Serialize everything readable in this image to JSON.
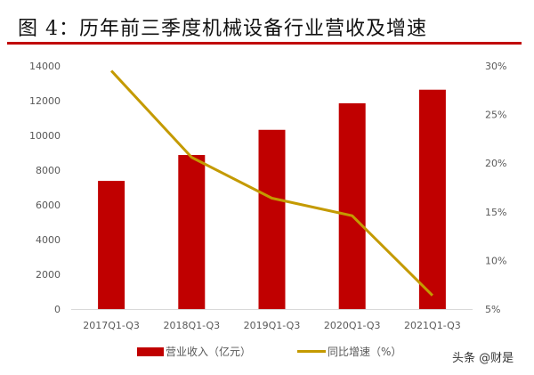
{
  "title": "图 4：历年前三季度机械设备行业营收及增速",
  "watermark": "头条 @财是",
  "chart_data": {
    "type": "bar+line",
    "categories": [
      "2017Q1-Q3",
      "2018Q1-Q3",
      "2019Q1-Q3",
      "2020Q1-Q3",
      "2021Q1-Q3"
    ],
    "series": [
      {
        "name": "营业收入（亿元）",
        "type": "bar",
        "axis": "left",
        "color": "#c00000",
        "values": [
          7380,
          8870,
          10320,
          11850,
          12630
        ]
      },
      {
        "name": "同比增速（%）",
        "type": "line",
        "axis": "right",
        "color": "#c49a00",
        "values": [
          29.5,
          20.6,
          16.4,
          14.6,
          6.4
        ]
      }
    ],
    "ylim_left": [
      0,
      14000
    ],
    "yticks_left": [
      "0",
      "2000",
      "4000",
      "6000",
      "8000",
      "10000",
      "12000",
      "14000"
    ],
    "ylim_right": [
      5,
      30
    ],
    "yticks_right": [
      "5%",
      "10%",
      "15%",
      "20%",
      "25%",
      "30%"
    ],
    "grid": false,
    "legend": "bottom"
  }
}
